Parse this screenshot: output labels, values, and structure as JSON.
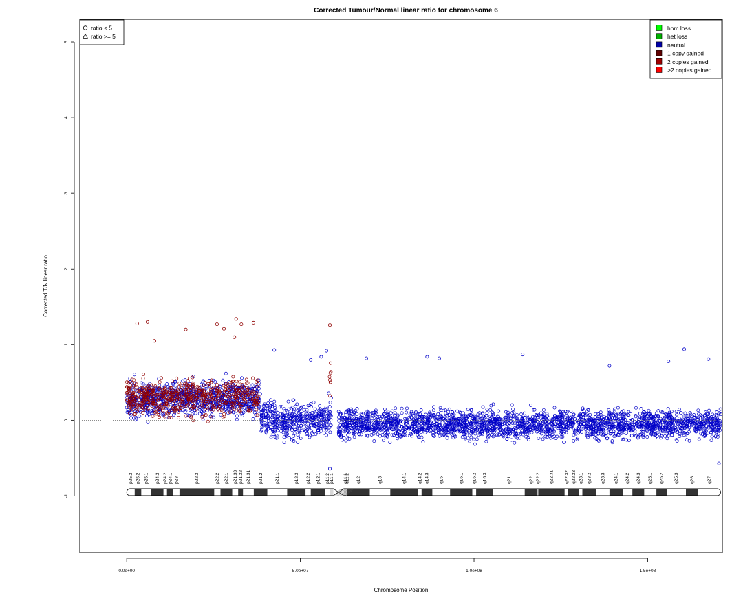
{
  "chart_data": {
    "type": "scatter",
    "title": "Corrected Tumour/Normal linear ratio for chromosome  6",
    "xlabel": "Chromosome Position",
    "ylabel": "Corrected T/N linear ratio",
    "xlim": [
      -13500000,
      171500000
    ],
    "ylim": [
      -1.75,
      5.3
    ],
    "xticks": [
      {
        "value": 0,
        "label": "0.0e+00"
      },
      {
        "value": 50000000,
        "label": "5.0e+07"
      },
      {
        "value": 100000000,
        "label": "1.0e+08"
      },
      {
        "value": 150000000,
        "label": "1.5e+08"
      }
    ],
    "yticks": [
      {
        "value": -1,
        "label": "-1"
      },
      {
        "value": 0,
        "label": "0"
      },
      {
        "value": 1,
        "label": "1"
      },
      {
        "value": 2,
        "label": "2"
      },
      {
        "value": 3,
        "label": "3"
      },
      {
        "value": 4,
        "label": "4"
      },
      {
        "value": 5,
        "label": "5"
      }
    ],
    "reference_line": 0,
    "legend_shapes": {
      "placement": "top-left",
      "entries": [
        {
          "label": "ratio < 5",
          "shape": "circle"
        },
        {
          "label": "ratio >= 5",
          "shape": "triangle"
        }
      ]
    },
    "legend_states": {
      "placement": "top-right",
      "entries": [
        {
          "label": "hom loss",
          "color": "#00ff00"
        },
        {
          "label": "het loss",
          "color": "#00b000"
        },
        {
          "label": "neutral",
          "color": "#0000a8"
        },
        {
          "label": "1 copy gained",
          "color": "#600000"
        },
        {
          "label": "2 copies gained",
          "color": "#a00000"
        },
        {
          "label": ">2 copies gained",
          "color": "#ff0000"
        }
      ]
    },
    "colors": {
      "neutral": "#0000c8",
      "gain": "#900000"
    },
    "series": [
      {
        "name": "neutral",
        "color": "#0000c8",
        "segments": [
          {
            "start": 0,
            "end": 38500000,
            "mean": 0.28,
            "spread": 0.24
          },
          {
            "start": 38500000,
            "end": 58000000,
            "mean": 0.0,
            "spread": 0.25
          },
          {
            "start": 58000000,
            "end": 59000000,
            "mean": 0.1,
            "spread": 0.35
          },
          {
            "start": 61000000,
            "end": 171000000,
            "mean": -0.05,
            "spread": 0.2
          }
        ]
      },
      {
        "name": "1 copy gained",
        "color": "#900000",
        "segments": [
          {
            "start": 0,
            "end": 38000000,
            "mean": 0.3,
            "spread": 0.25
          },
          {
            "start": 58400000,
            "end": 58900000,
            "mean": 0.55,
            "spread": 0.35
          }
        ]
      }
    ],
    "outliers": [
      {
        "x": 3000000,
        "y": 1.28,
        "series": "1 copy gained"
      },
      {
        "x": 6000000,
        "y": 1.3,
        "series": "1 copy gained"
      },
      {
        "x": 8000000,
        "y": 1.05,
        "series": "1 copy gained"
      },
      {
        "x": 17000000,
        "y": 1.2,
        "series": "1 copy gained"
      },
      {
        "x": 26000000,
        "y": 1.27,
        "series": "1 copy gained"
      },
      {
        "x": 28000000,
        "y": 1.21,
        "series": "1 copy gained"
      },
      {
        "x": 31500000,
        "y": 1.34,
        "series": "1 copy gained"
      },
      {
        "x": 33000000,
        "y": 1.27,
        "series": "1 copy gained"
      },
      {
        "x": 36500000,
        "y": 1.29,
        "series": "1 copy gained"
      },
      {
        "x": 58500000,
        "y": 1.26,
        "series": "1 copy gained"
      },
      {
        "x": 31000000,
        "y": 1.1,
        "series": "1 copy gained"
      },
      {
        "x": 42500000,
        "y": 0.93,
        "series": "neutral"
      },
      {
        "x": 53000000,
        "y": 0.8,
        "series": "neutral"
      },
      {
        "x": 56000000,
        "y": 0.84,
        "series": "neutral"
      },
      {
        "x": 57500000,
        "y": 0.92,
        "series": "neutral"
      },
      {
        "x": 69000000,
        "y": 0.82,
        "series": "neutral"
      },
      {
        "x": 86500000,
        "y": 0.84,
        "series": "neutral"
      },
      {
        "x": 90000000,
        "y": 0.82,
        "series": "neutral"
      },
      {
        "x": 114000000,
        "y": 0.87,
        "series": "neutral"
      },
      {
        "x": 139000000,
        "y": 0.72,
        "series": "neutral"
      },
      {
        "x": 156000000,
        "y": 0.78,
        "series": "neutral"
      },
      {
        "x": 160500000,
        "y": 0.94,
        "series": "neutral"
      },
      {
        "x": 167500000,
        "y": 0.81,
        "series": "neutral"
      },
      {
        "x": 58500000,
        "y": -0.64,
        "series": "neutral"
      },
      {
        "x": 170500000,
        "y": -0.57,
        "series": "neutral"
      }
    ],
    "ideogram": {
      "y": -0.95,
      "centromere_start": 59500000,
      "centromere_end": 62500000,
      "bands": [
        {
          "start": 0,
          "end": 2300000,
          "name": "p25.3",
          "stain": "gneg"
        },
        {
          "start": 2300000,
          "end": 4200000,
          "name": "p25.2",
          "stain": "gpos"
        },
        {
          "start": 4200000,
          "end": 7100000,
          "name": "p25.1",
          "stain": "gneg"
        },
        {
          "start": 7100000,
          "end": 10600000,
          "name": "p24.3",
          "stain": "gpos"
        },
        {
          "start": 10600000,
          "end": 11600000,
          "name": "p24.2",
          "stain": "gneg"
        },
        {
          "start": 11600000,
          "end": 13400000,
          "name": "p24.1",
          "stain": "gpos"
        },
        {
          "start": 13400000,
          "end": 15200000,
          "name": "p23",
          "stain": "gneg"
        },
        {
          "start": 15200000,
          "end": 25200000,
          "name": "p22.3",
          "stain": "gpos"
        },
        {
          "start": 25200000,
          "end": 27000000,
          "name": "p22.2",
          "stain": "gneg"
        },
        {
          "start": 27000000,
          "end": 30400000,
          "name": "p22.1",
          "stain": "gpos"
        },
        {
          "start": 30400000,
          "end": 32100000,
          "name": "p21.33",
          "stain": "gneg"
        },
        {
          "start": 32100000,
          "end": 33500000,
          "name": "p21.32",
          "stain": "gpos"
        },
        {
          "start": 33500000,
          "end": 36600000,
          "name": "p21.31",
          "stain": "gneg"
        },
        {
          "start": 36600000,
          "end": 40500000,
          "name": "p21.2",
          "stain": "gpos"
        },
        {
          "start": 40500000,
          "end": 46200000,
          "name": "p21.1",
          "stain": "gneg"
        },
        {
          "start": 46200000,
          "end": 51500000,
          "name": "p12.3",
          "stain": "gpos"
        },
        {
          "start": 51500000,
          "end": 53000000,
          "name": "p12.2",
          "stain": "gneg"
        },
        {
          "start": 53000000,
          "end": 57200000,
          "name": "p12.1",
          "stain": "gpos"
        },
        {
          "start": 57200000,
          "end": 58500000,
          "name": "p11.2",
          "stain": "gneg"
        },
        {
          "start": 58500000,
          "end": 59500000,
          "name": "p11.1",
          "stain": "acen"
        },
        {
          "start": 62500000,
          "end": 63400000,
          "name": "q11.1",
          "stain": "acen"
        },
        {
          "start": 63400000,
          "end": 63500000,
          "name": "q11.2",
          "stain": "gneg"
        },
        {
          "start": 63500000,
          "end": 70000000,
          "name": "q12",
          "stain": "gpos"
        },
        {
          "start": 70000000,
          "end": 75900000,
          "name": "q13",
          "stain": "gneg"
        },
        {
          "start": 75900000,
          "end": 83900000,
          "name": "q14.1",
          "stain": "gpos"
        },
        {
          "start": 83900000,
          "end": 84900000,
          "name": "q14.2",
          "stain": "gneg"
        },
        {
          "start": 84900000,
          "end": 88000000,
          "name": "q14.3",
          "stain": "gpos"
        },
        {
          "start": 88000000,
          "end": 93100000,
          "name": "q15",
          "stain": "gneg"
        },
        {
          "start": 93100000,
          "end": 99500000,
          "name": "q16.1",
          "stain": "gpos"
        },
        {
          "start": 99500000,
          "end": 100600000,
          "name": "q16.2",
          "stain": "gneg"
        },
        {
          "start": 100600000,
          "end": 105500000,
          "name": "q16.3",
          "stain": "gpos"
        },
        {
          "start": 105500000,
          "end": 114600000,
          "name": "q21",
          "stain": "gneg"
        },
        {
          "start": 114600000,
          "end": 118300000,
          "name": "q22.1",
          "stain": "gpos"
        },
        {
          "start": 118300000,
          "end": 118500000,
          "name": "q22.2",
          "stain": "gneg"
        },
        {
          "start": 118500000,
          "end": 126100000,
          "name": "q22.31",
          "stain": "gpos"
        },
        {
          "start": 126100000,
          "end": 127100000,
          "name": "q22.32",
          "stain": "gneg"
        },
        {
          "start": 127100000,
          "end": 130300000,
          "name": "q22.33",
          "stain": "gpos"
        },
        {
          "start": 130300000,
          "end": 131200000,
          "name": "q23.1",
          "stain": "gneg"
        },
        {
          "start": 131200000,
          "end": 135200000,
          "name": "q23.2",
          "stain": "gpos"
        },
        {
          "start": 135200000,
          "end": 139000000,
          "name": "q23.3",
          "stain": "gneg"
        },
        {
          "start": 139000000,
          "end": 142800000,
          "name": "q24.1",
          "stain": "gpos"
        },
        {
          "start": 142800000,
          "end": 145600000,
          "name": "q24.2",
          "stain": "gneg"
        },
        {
          "start": 145600000,
          "end": 149000000,
          "name": "q24.3",
          "stain": "gpos"
        },
        {
          "start": 149000000,
          "end": 152500000,
          "name": "q25.1",
          "stain": "gneg"
        },
        {
          "start": 152500000,
          "end": 155500000,
          "name": "q25.2",
          "stain": "gpos"
        },
        {
          "start": 155500000,
          "end": 161000000,
          "name": "q25.3",
          "stain": "gneg"
        },
        {
          "start": 161000000,
          "end": 164500000,
          "name": "q26",
          "stain": "gpos"
        },
        {
          "start": 164500000,
          "end": 171000000,
          "name": "q27",
          "stain": "gneg"
        }
      ]
    }
  }
}
